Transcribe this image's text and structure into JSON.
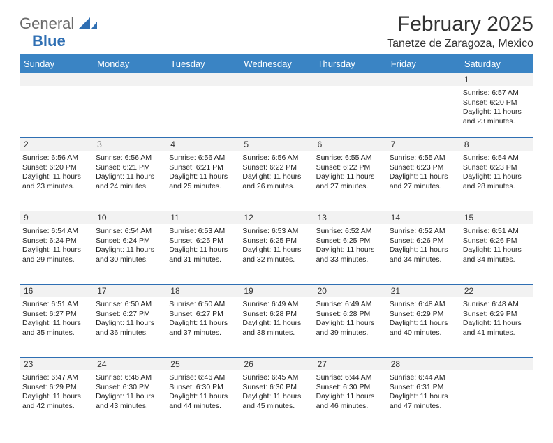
{
  "logo": {
    "text_gray": "General",
    "text_blue": "Blue",
    "gray_color": "#6b6b6b",
    "blue_color": "#2f6fb3"
  },
  "header": {
    "month_title": "February 2025",
    "location": "Tanetze de Zaragoza, Mexico"
  },
  "colors": {
    "header_bg": "#3a84c4",
    "header_text": "#ffffff",
    "daynum_bg": "#f2f2f2",
    "separator": "#2f6fb3",
    "text": "#222222"
  },
  "day_names": [
    "Sunday",
    "Monday",
    "Tuesday",
    "Wednesday",
    "Thursday",
    "Friday",
    "Saturday"
  ],
  "weeks": [
    {
      "nums": [
        "",
        "",
        "",
        "",
        "",
        "",
        "1"
      ],
      "cells": [
        null,
        null,
        null,
        null,
        null,
        null,
        {
          "sunrise": "Sunrise: 6:57 AM",
          "sunset": "Sunset: 6:20 PM",
          "dl1": "Daylight: 11 hours",
          "dl2": "and 23 minutes."
        }
      ]
    },
    {
      "nums": [
        "2",
        "3",
        "4",
        "5",
        "6",
        "7",
        "8"
      ],
      "cells": [
        {
          "sunrise": "Sunrise: 6:56 AM",
          "sunset": "Sunset: 6:20 PM",
          "dl1": "Daylight: 11 hours",
          "dl2": "and 23 minutes."
        },
        {
          "sunrise": "Sunrise: 6:56 AM",
          "sunset": "Sunset: 6:21 PM",
          "dl1": "Daylight: 11 hours",
          "dl2": "and 24 minutes."
        },
        {
          "sunrise": "Sunrise: 6:56 AM",
          "sunset": "Sunset: 6:21 PM",
          "dl1": "Daylight: 11 hours",
          "dl2": "and 25 minutes."
        },
        {
          "sunrise": "Sunrise: 6:56 AM",
          "sunset": "Sunset: 6:22 PM",
          "dl1": "Daylight: 11 hours",
          "dl2": "and 26 minutes."
        },
        {
          "sunrise": "Sunrise: 6:55 AM",
          "sunset": "Sunset: 6:22 PM",
          "dl1": "Daylight: 11 hours",
          "dl2": "and 27 minutes."
        },
        {
          "sunrise": "Sunrise: 6:55 AM",
          "sunset": "Sunset: 6:23 PM",
          "dl1": "Daylight: 11 hours",
          "dl2": "and 27 minutes."
        },
        {
          "sunrise": "Sunrise: 6:54 AM",
          "sunset": "Sunset: 6:23 PM",
          "dl1": "Daylight: 11 hours",
          "dl2": "and 28 minutes."
        }
      ]
    },
    {
      "nums": [
        "9",
        "10",
        "11",
        "12",
        "13",
        "14",
        "15"
      ],
      "cells": [
        {
          "sunrise": "Sunrise: 6:54 AM",
          "sunset": "Sunset: 6:24 PM",
          "dl1": "Daylight: 11 hours",
          "dl2": "and 29 minutes."
        },
        {
          "sunrise": "Sunrise: 6:54 AM",
          "sunset": "Sunset: 6:24 PM",
          "dl1": "Daylight: 11 hours",
          "dl2": "and 30 minutes."
        },
        {
          "sunrise": "Sunrise: 6:53 AM",
          "sunset": "Sunset: 6:25 PM",
          "dl1": "Daylight: 11 hours",
          "dl2": "and 31 minutes."
        },
        {
          "sunrise": "Sunrise: 6:53 AM",
          "sunset": "Sunset: 6:25 PM",
          "dl1": "Daylight: 11 hours",
          "dl2": "and 32 minutes."
        },
        {
          "sunrise": "Sunrise: 6:52 AM",
          "sunset": "Sunset: 6:25 PM",
          "dl1": "Daylight: 11 hours",
          "dl2": "and 33 minutes."
        },
        {
          "sunrise": "Sunrise: 6:52 AM",
          "sunset": "Sunset: 6:26 PM",
          "dl1": "Daylight: 11 hours",
          "dl2": "and 34 minutes."
        },
        {
          "sunrise": "Sunrise: 6:51 AM",
          "sunset": "Sunset: 6:26 PM",
          "dl1": "Daylight: 11 hours",
          "dl2": "and 34 minutes."
        }
      ]
    },
    {
      "nums": [
        "16",
        "17",
        "18",
        "19",
        "20",
        "21",
        "22"
      ],
      "cells": [
        {
          "sunrise": "Sunrise: 6:51 AM",
          "sunset": "Sunset: 6:27 PM",
          "dl1": "Daylight: 11 hours",
          "dl2": "and 35 minutes."
        },
        {
          "sunrise": "Sunrise: 6:50 AM",
          "sunset": "Sunset: 6:27 PM",
          "dl1": "Daylight: 11 hours",
          "dl2": "and 36 minutes."
        },
        {
          "sunrise": "Sunrise: 6:50 AM",
          "sunset": "Sunset: 6:27 PM",
          "dl1": "Daylight: 11 hours",
          "dl2": "and 37 minutes."
        },
        {
          "sunrise": "Sunrise: 6:49 AM",
          "sunset": "Sunset: 6:28 PM",
          "dl1": "Daylight: 11 hours",
          "dl2": "and 38 minutes."
        },
        {
          "sunrise": "Sunrise: 6:49 AM",
          "sunset": "Sunset: 6:28 PM",
          "dl1": "Daylight: 11 hours",
          "dl2": "and 39 minutes."
        },
        {
          "sunrise": "Sunrise: 6:48 AM",
          "sunset": "Sunset: 6:29 PM",
          "dl1": "Daylight: 11 hours",
          "dl2": "and 40 minutes."
        },
        {
          "sunrise": "Sunrise: 6:48 AM",
          "sunset": "Sunset: 6:29 PM",
          "dl1": "Daylight: 11 hours",
          "dl2": "and 41 minutes."
        }
      ]
    },
    {
      "nums": [
        "23",
        "24",
        "25",
        "26",
        "27",
        "28",
        ""
      ],
      "cells": [
        {
          "sunrise": "Sunrise: 6:47 AM",
          "sunset": "Sunset: 6:29 PM",
          "dl1": "Daylight: 11 hours",
          "dl2": "and 42 minutes."
        },
        {
          "sunrise": "Sunrise: 6:46 AM",
          "sunset": "Sunset: 6:30 PM",
          "dl1": "Daylight: 11 hours",
          "dl2": "and 43 minutes."
        },
        {
          "sunrise": "Sunrise: 6:46 AM",
          "sunset": "Sunset: 6:30 PM",
          "dl1": "Daylight: 11 hours",
          "dl2": "and 44 minutes."
        },
        {
          "sunrise": "Sunrise: 6:45 AM",
          "sunset": "Sunset: 6:30 PM",
          "dl1": "Daylight: 11 hours",
          "dl2": "and 45 minutes."
        },
        {
          "sunrise": "Sunrise: 6:44 AM",
          "sunset": "Sunset: 6:30 PM",
          "dl1": "Daylight: 11 hours",
          "dl2": "and 46 minutes."
        },
        {
          "sunrise": "Sunrise: 6:44 AM",
          "sunset": "Sunset: 6:31 PM",
          "dl1": "Daylight: 11 hours",
          "dl2": "and 47 minutes."
        },
        null
      ]
    }
  ]
}
